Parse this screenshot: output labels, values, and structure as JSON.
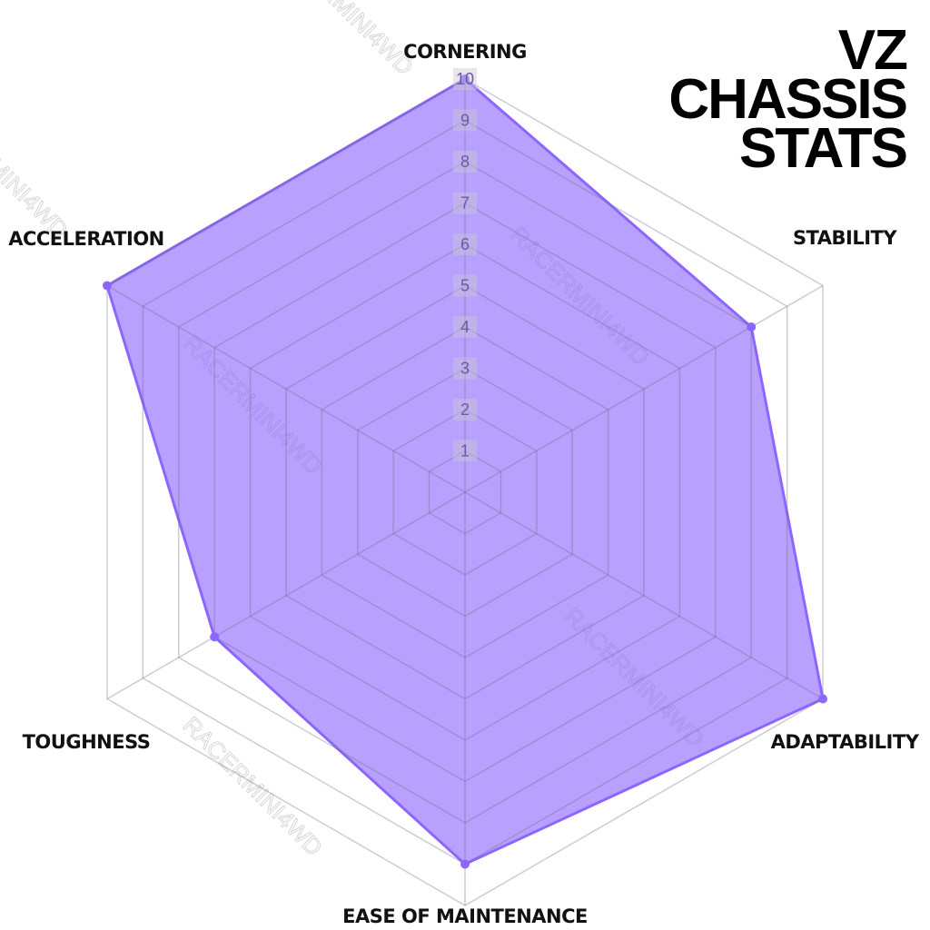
{
  "chart_data": {
    "type": "radar",
    "title": [
      "VZ",
      "CHASSIS",
      "STATS"
    ],
    "watermark": "RACERMINI4WD",
    "categories": [
      "CORNERING",
      "STABILITY",
      "ADAPTABILITY",
      "EASE OF MAINTENANCE",
      "TOUGHNESS",
      "ACCELERATION"
    ],
    "values": [
      10,
      8,
      10,
      9,
      7,
      10
    ],
    "color": "#8c66ff",
    "rlim": [
      0,
      10
    ],
    "rticks": [
      1,
      2,
      3,
      4,
      5,
      6,
      7,
      8,
      9,
      10
    ],
    "grid": true
  }
}
